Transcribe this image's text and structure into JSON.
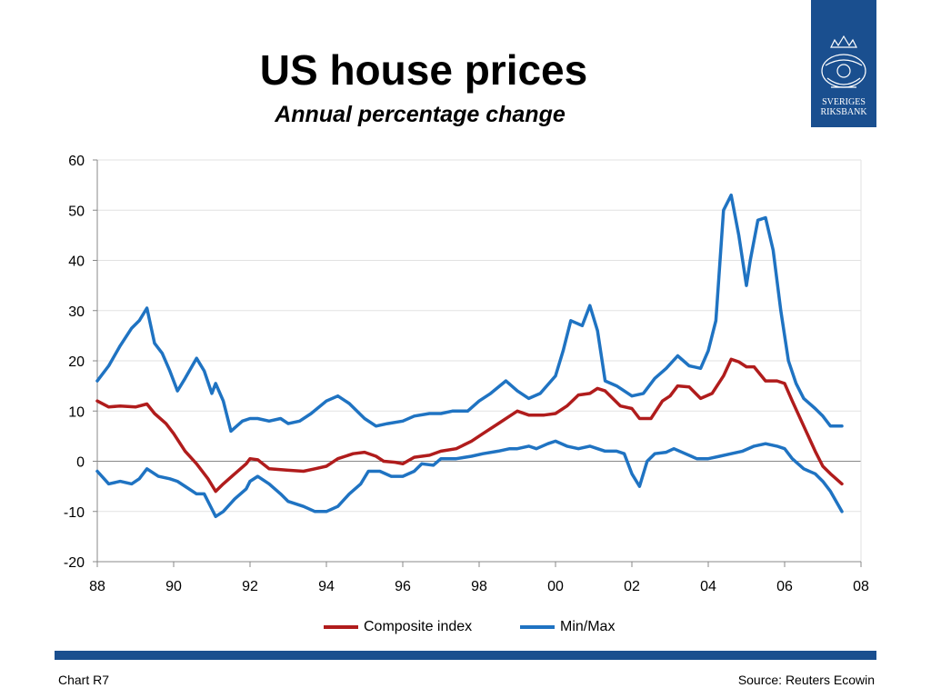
{
  "slide": {
    "title": "US house prices",
    "subtitle": "Annual percentage change",
    "footer_left": "Chart R7",
    "footer_right": "Source: Reuters Ecowin",
    "logo_line1": "SVERIGES",
    "logo_line2": "RIKSBANK",
    "brand_color": "#1a4f8f"
  },
  "chart_data": {
    "type": "line",
    "title": "US house prices",
    "subtitle": "Annual percentage change",
    "ylim": [
      -20,
      60
    ],
    "yticks": [
      "60",
      "50",
      "40",
      "30",
      "20",
      "10",
      "0",
      "-10",
      "-20"
    ],
    "xlim": [
      1988,
      2008
    ],
    "xticks": [
      "88",
      "90",
      "92",
      "94",
      "96",
      "98",
      "00",
      "02",
      "04",
      "06",
      "08"
    ],
    "grid": "horizontal",
    "legend_position": "bottom",
    "series": [
      {
        "name": "Composite index",
        "color": "#b01c1c",
        "x": [
          1988.0,
          1988.3,
          1988.6,
          1989.0,
          1989.3,
          1989.5,
          1989.8,
          1990.0,
          1990.3,
          1990.6,
          1990.9,
          1991.1,
          1991.3,
          1991.6,
          1991.9,
          1992.0,
          1992.2,
          1992.5,
          1993.0,
          1993.4,
          1993.7,
          1994.0,
          1994.3,
          1994.7,
          1995.0,
          1995.3,
          1995.5,
          1995.8,
          1996.0,
          1996.3,
          1996.7,
          1997.0,
          1997.4,
          1997.8,
          1998.1,
          1998.5,
          1998.8,
          1999.0,
          1999.3,
          1999.7,
          2000.0,
          2000.3,
          2000.6,
          2000.9,
          2001.1,
          2001.3,
          2001.7,
          2002.0,
          2002.2,
          2002.5,
          2002.8,
          2003.0,
          2003.2,
          2003.5,
          2003.8,
          2004.1,
          2004.4,
          2004.6,
          2004.8,
          2005.0,
          2005.2,
          2005.5,
          2005.8,
          2006.0,
          2006.2,
          2006.5,
          2006.8,
          2007.0,
          2007.2,
          2007.5
        ],
        "values": [
          12.0,
          10.8,
          11.0,
          10.8,
          11.4,
          9.5,
          7.5,
          5.5,
          2.0,
          -0.5,
          -3.5,
          -6.0,
          -4.5,
          -2.5,
          -0.5,
          0.5,
          0.3,
          -1.5,
          -1.8,
          -2.0,
          -1.5,
          -1.0,
          0.5,
          1.5,
          1.8,
          1.0,
          0.0,
          -0.2,
          -0.5,
          0.8,
          1.2,
          2.0,
          2.5,
          4.0,
          5.5,
          7.5,
          9.0,
          10.0,
          9.2,
          9.2,
          9.5,
          11.0,
          13.2,
          13.5,
          14.5,
          14.0,
          11.0,
          10.5,
          8.5,
          8.5,
          12.0,
          13.0,
          15.0,
          14.8,
          12.5,
          13.5,
          17.0,
          20.3,
          19.8,
          18.8,
          18.8,
          16.0,
          16.0,
          15.5,
          12.0,
          7.0,
          2.0,
          -1.0,
          -2.5,
          -4.5
        ]
      },
      {
        "name": "Min/Max",
        "color": "#1f73c2",
        "lines": [
          {
            "x": [
              1988.0,
              1988.3,
              1988.6,
              1988.9,
              1989.1,
              1989.3,
              1989.5,
              1989.7,
              1989.9,
              1990.1,
              1990.3,
              1990.6,
              1990.8,
              1991.0,
              1991.1,
              1991.3,
              1991.5,
              1991.8,
              1992.0,
              1992.2,
              1992.5,
              1992.8,
              1993.0,
              1993.3,
              1993.6,
              1994.0,
              1994.3,
              1994.6,
              1994.8,
              1995.0,
              1995.3,
              1995.6,
              1996.0,
              1996.3,
              1996.7,
              1997.0,
              1997.3,
              1997.7,
              1998.0,
              1998.3,
              1998.7,
              1999.0,
              1999.3,
              1999.6,
              2000.0,
              2000.2,
              2000.4,
              2000.7,
              2000.9,
              2001.1,
              2001.3,
              2001.6,
              2002.0,
              2002.3,
              2002.6,
              2002.9,
              2003.2,
              2003.5,
              2003.8,
              2004.0,
              2004.2,
              2004.4,
              2004.6,
              2004.8,
              2005.0,
              2005.1,
              2005.3,
              2005.5,
              2005.7,
              2005.9,
              2006.1,
              2006.3,
              2006.5,
              2006.8,
              2007.0,
              2007.2,
              2007.5
            ],
            "values": [
              16.0,
              19.0,
              23.0,
              26.5,
              28.0,
              30.5,
              23.5,
              21.5,
              18.0,
              14.0,
              16.5,
              20.5,
              18.0,
              13.5,
              15.5,
              12.0,
              6.0,
              8.0,
              8.5,
              8.5,
              8.0,
              8.5,
              7.5,
              8.0,
              9.5,
              12.0,
              13.0,
              11.5,
              10.0,
              8.5,
              7.0,
              7.5,
              8.0,
              9.0,
              9.5,
              9.5,
              10.0,
              10.0,
              12.0,
              13.5,
              16.0,
              14.0,
              12.5,
              13.5,
              17.0,
              22.0,
              28.0,
              27.0,
              31.0,
              26.0,
              16.0,
              15.0,
              13.0,
              13.5,
              16.5,
              18.5,
              21.0,
              19.0,
              18.5,
              22.0,
              28.0,
              50.0,
              53.0,
              45.0,
              35.0,
              40.0,
              48.0,
              48.5,
              42.0,
              30.0,
              20.0,
              15.5,
              12.5,
              10.5,
              9.0,
              7.0,
              7.0
            ]
          },
          {
            "x": [
              1988.0,
              1988.3,
              1988.6,
              1988.9,
              1989.1,
              1989.3,
              1989.6,
              1989.9,
              1990.1,
              1990.3,
              1990.6,
              1990.8,
              1991.0,
              1991.1,
              1991.3,
              1991.6,
              1991.9,
              1992.0,
              1992.2,
              1992.5,
              1992.8,
              1993.0,
              1993.4,
              1993.7,
              1994.0,
              1994.3,
              1994.6,
              1994.9,
              1995.1,
              1995.4,
              1995.7,
              1996.0,
              1996.3,
              1996.5,
              1996.8,
              1997.0,
              1997.4,
              1997.8,
              1998.1,
              1998.5,
              1998.8,
              1999.0,
              1999.3,
              1999.5,
              1999.8,
              2000.0,
              2000.3,
              2000.6,
              2000.9,
              2001.1,
              2001.3,
              2001.6,
              2001.8,
              2002.0,
              2002.2,
              2002.4,
              2002.6,
              2002.9,
              2003.1,
              2003.4,
              2003.7,
              2004.0,
              2004.3,
              2004.6,
              2004.9,
              2005.2,
              2005.5,
              2005.8,
              2006.0,
              2006.2,
              2006.5,
              2006.8,
              2007.0,
              2007.2,
              2007.5
            ],
            "values": [
              -2.0,
              -4.5,
              -4.0,
              -4.5,
              -3.5,
              -1.5,
              -3.0,
              -3.5,
              -4.0,
              -5.0,
              -6.5,
              -6.5,
              -9.5,
              -11.0,
              -10.0,
              -7.5,
              -5.5,
              -4.0,
              -3.0,
              -4.5,
              -6.5,
              -8.0,
              -9.0,
              -10.0,
              -10.0,
              -9.0,
              -6.5,
              -4.5,
              -2.0,
              -2.0,
              -3.0,
              -3.0,
              -2.0,
              -0.5,
              -0.8,
              0.5,
              0.5,
              1.0,
              1.5,
              2.0,
              2.5,
              2.5,
              3.0,
              2.5,
              3.5,
              4.0,
              3.0,
              2.5,
              3.0,
              2.5,
              2.0,
              2.0,
              1.5,
              -2.5,
              -5.0,
              0.0,
              1.5,
              1.8,
              2.5,
              1.5,
              0.5,
              0.5,
              1.0,
              1.5,
              2.0,
              3.0,
              3.5,
              3.0,
              2.5,
              0.5,
              -1.5,
              -2.5,
              -4.0,
              -6.0,
              -10.0
            ]
          }
        ]
      }
    ]
  }
}
